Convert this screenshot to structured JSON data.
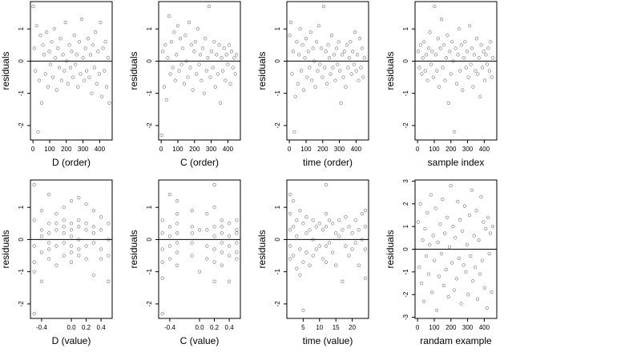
{
  "chart_data": [
    {
      "type": "scatter",
      "xlabel": "D (order)",
      "ylabel": "residuals",
      "xlim": [
        -15,
        475
      ],
      "ylim": [
        -2.45,
        1.85
      ],
      "xticks": [
        0,
        100,
        200,
        300,
        400
      ],
      "xtick_labels": [
        "0",
        "100",
        "200",
        "300",
        "400"
      ],
      "yticks": [
        -2,
        -1,
        0,
        1
      ],
      "ytick_labels": [
        "-2",
        "-1",
        "0",
        "1"
      ],
      "reference_line_y": 0,
      "grid": false,
      "x": [
        2,
        8,
        15,
        22,
        30,
        38,
        45,
        52,
        60,
        68,
        75,
        82,
        90,
        98,
        105,
        112,
        120,
        128,
        135,
        142,
        150,
        158,
        165,
        172,
        180,
        188,
        195,
        202,
        210,
        218,
        225,
        232,
        240,
        248,
        255,
        262,
        270,
        278,
        285,
        292,
        300,
        308,
        315,
        322,
        330,
        338,
        345,
        352,
        360,
        368,
        375,
        382,
        390,
        398,
        405,
        412,
        420,
        428,
        435,
        442,
        450,
        458
      ],
      "y": [
        1.7,
        0.4,
        -0.3,
        1.1,
        -2.2,
        -0.6,
        0.8,
        -1.3,
        0.5,
        0.2,
        -0.4,
        0.9,
        -0.8,
        0.3,
        -0.1,
        0.6,
        -0.5,
        1.0,
        0.1,
        -0.9,
        0.4,
        -0.2,
        0.7,
        -0.6,
        0.2,
        -0.3,
        1.2,
        0.0,
        -0.7,
        0.5,
        -0.2,
        0.3,
        -0.5,
        0.8,
        -0.1,
        0.2,
        -0.8,
        0.6,
        -0.4,
        1.3,
        0.1,
        -0.6,
        0.4,
        -0.3,
        0.7,
        -0.5,
        0.2,
        -1.0,
        0.5,
        -0.2,
        0.9,
        -0.7,
        0.3,
        -0.4,
        1.2,
        -1.1,
        0.4,
        -0.3,
        0.6,
        -0.8,
        0.1,
        -1.3
      ]
    },
    {
      "type": "scatter",
      "xlabel": "C (order)",
      "ylabel": "residuals",
      "xlim": [
        -15,
        475
      ],
      "ylim": [
        -2.45,
        1.85
      ],
      "xticks": [
        0,
        100,
        200,
        300,
        400
      ],
      "xtick_labels": [
        "0",
        "100",
        "200",
        "300",
        "400"
      ],
      "yticks": [
        -2,
        -1,
        0,
        1
      ],
      "ytick_labels": [
        "-2",
        "-1",
        "0",
        "1"
      ],
      "reference_line_y": 0,
      "grid": false,
      "x": [
        3,
        10,
        18,
        25,
        32,
        40,
        48,
        55,
        62,
        70,
        78,
        85,
        92,
        100,
        108,
        115,
        122,
        130,
        138,
        145,
        152,
        160,
        168,
        175,
        182,
        190,
        198,
        205,
        212,
        220,
        228,
        235,
        242,
        250,
        258,
        265,
        272,
        280,
        288,
        295,
        302,
        310,
        318,
        325,
        332,
        340,
        348,
        355,
        362,
        370,
        378,
        385,
        392,
        400,
        408,
        415,
        422,
        430,
        438,
        445,
        452
      ],
      "y": [
        -2.3,
        0.3,
        -0.8,
        0.5,
        -1.2,
        0.1,
        1.4,
        -0.4,
        0.6,
        -0.2,
        0.9,
        -0.6,
        0.2,
        1.1,
        -0.3,
        0.7,
        -0.1,
        0.4,
        -0.7,
        0.8,
        0.0,
        -0.5,
        1.2,
        -0.2,
        0.5,
        -0.9,
        0.3,
        0.6,
        -0.4,
        1.0,
        -0.1,
        0.2,
        -0.6,
        0.4,
        -1.0,
        0.7,
        -0.3,
        0.1,
        1.7,
        -0.5,
        0.3,
        -0.2,
        0.6,
        -0.8,
        0.2,
        -0.4,
        0.5,
        -1.3,
        0.1,
        -0.3,
        0.4,
        -0.6,
        0.2,
        -0.1,
        0.5,
        -0.7,
        0.3,
        -0.2,
        0.1,
        -0.4,
        0.2
      ]
    },
    {
      "type": "scatter",
      "xlabel": "time (order)",
      "ylabel": "residuals",
      "xlim": [
        -15,
        475
      ],
      "ylim": [
        -2.45,
        1.85
      ],
      "xticks": [
        0,
        100,
        200,
        300,
        400
      ],
      "xtick_labels": [
        "0",
        "100",
        "200",
        "300",
        "400"
      ],
      "yticks": [
        -2,
        -1,
        0,
        1
      ],
      "ytick_labels": [
        "-2",
        "-1",
        "0",
        "1"
      ],
      "reference_line_y": 0,
      "grid": false,
      "x": [
        2,
        9,
        16,
        23,
        30,
        37,
        44,
        51,
        58,
        65,
        72,
        79,
        86,
        93,
        100,
        107,
        114,
        121,
        128,
        135,
        142,
        149,
        156,
        163,
        170,
        177,
        184,
        191,
        198,
        205,
        212,
        219,
        226,
        233,
        240,
        247,
        254,
        261,
        268,
        275,
        282,
        289,
        296,
        303,
        310,
        317,
        324,
        331,
        338,
        345,
        352,
        359,
        366,
        373,
        380,
        387,
        394,
        401,
        408,
        415,
        422,
        429,
        436,
        443,
        450
      ],
      "y": [
        0.8,
        1.2,
        -0.4,
        0.3,
        -2.2,
        -1.1,
        0.6,
        -0.7,
        0.2,
        1.0,
        -0.3,
        0.5,
        -0.9,
        0.1,
        0.7,
        -0.5,
        0.3,
        -0.2,
        0.9,
        -0.6,
        0.4,
        0.0,
        -0.8,
        0.6,
        -0.3,
        1.1,
        -0.1,
        0.4,
        -0.5,
        1.7,
        -0.2,
        0.3,
        -0.7,
        0.5,
        0.1,
        -0.4,
        0.8,
        -0.2,
        0.2,
        -0.6,
        0.4,
        -0.1,
        0.6,
        -0.3,
        -1.3,
        0.2,
        -0.5,
        0.3,
        -0.8,
        0.5,
        -0.2,
        0.1,
        0.6,
        -0.4,
        0.3,
        -0.1,
        0.9,
        -0.3,
        0.2,
        -0.6,
        0.7,
        -0.2,
        0.4,
        -0.5,
        0.1
      ]
    },
    {
      "type": "scatter",
      "xlabel": "sample index",
      "ylabel": "residuals",
      "xlim": [
        -15,
        475
      ],
      "ylim": [
        -2.45,
        1.85
      ],
      "xticks": [
        0,
        100,
        200,
        300,
        400
      ],
      "xtick_labels": [
        "0",
        "100",
        "200",
        "300",
        "400"
      ],
      "yticks": [
        -2,
        -1,
        0,
        1
      ],
      "ytick_labels": [
        "-2",
        "-1",
        "0",
        "1"
      ],
      "reference_line_y": 0,
      "grid": false,
      "x": [
        4,
        11,
        18,
        25,
        32,
        39,
        46,
        53,
        60,
        67,
        74,
        81,
        88,
        95,
        102,
        109,
        116,
        123,
        130,
        137,
        144,
        151,
        158,
        165,
        172,
        179,
        186,
        193,
        200,
        207,
        214,
        221,
        228,
        235,
        242,
        249,
        256,
        263,
        270,
        277,
        284,
        291,
        298,
        305,
        312,
        319,
        326,
        333,
        340,
        347,
        354,
        361,
        368,
        375,
        382,
        389,
        396,
        403,
        410,
        417,
        424,
        431,
        438,
        445,
        452
      ],
      "y": [
        0.3,
        -0.2,
        0.5,
        -0.4,
        0.1,
        0.6,
        -0.3,
        0.2,
        -0.6,
        0.4,
        0.9,
        -0.1,
        0.3,
        -0.5,
        1.7,
        0.2,
        -0.3,
        0.7,
        -0.8,
        0.4,
        1.3,
        -0.2,
        0.5,
        -0.6,
        0.1,
        0.8,
        -1.3,
        0.3,
        -0.4,
        0.6,
        0.0,
        -2.2,
        0.4,
        -0.7,
        0.2,
        1.0,
        -0.3,
        0.5,
        -0.9,
        0.1,
        0.6,
        -0.2,
        0.3,
        -0.5,
        1.1,
        -0.1,
        0.4,
        -0.8,
        0.2,
        -0.3,
        0.7,
        -0.4,
        0.1,
        -1.1,
        0.5,
        -0.2,
        0.3,
        -0.6,
        0.2,
        -0.1,
        0.4,
        -0.3,
        0.6,
        -0.5,
        0.1
      ]
    },
    {
      "type": "scatter",
      "xlabel": "D (value)",
      "ylabel": "residuals",
      "xlim": [
        -0.55,
        0.55
      ],
      "ylim": [
        -2.45,
        1.85
      ],
      "xticks": [
        -0.4,
        0.0,
        0.2,
        0.4
      ],
      "xtick_labels": [
        "-0.4",
        "0.0",
        "0.2",
        "0.4"
      ],
      "yticks": [
        -2,
        -1,
        0,
        1
      ],
      "ytick_labels": [
        "-2",
        "-1",
        "0",
        "1"
      ],
      "reference_line_y": 0,
      "grid": false,
      "x": [
        -0.5,
        -0.5,
        -0.5,
        -0.5,
        -0.5,
        -0.5,
        -0.4,
        -0.4,
        -0.4,
        -0.4,
        -0.4,
        -0.3,
        -0.3,
        -0.3,
        -0.3,
        -0.3,
        -0.3,
        -0.2,
        -0.2,
        -0.2,
        -0.2,
        -0.2,
        -0.1,
        -0.1,
        -0.1,
        -0.1,
        -0.1,
        -0.1,
        0.0,
        0.0,
        0.0,
        0.0,
        0.0,
        0.0,
        0.0,
        0.1,
        0.1,
        0.1,
        0.1,
        0.1,
        0.1,
        0.2,
        0.2,
        0.2,
        0.2,
        0.2,
        0.3,
        0.3,
        0.3,
        0.3,
        0.3,
        0.4,
        0.4,
        0.4,
        0.4,
        0.5,
        0.5,
        0.5,
        0.5
      ],
      "y": [
        1.7,
        0.6,
        -0.2,
        -0.7,
        -1.0,
        -2.3,
        0.9,
        0.3,
        -0.4,
        0.1,
        -1.3,
        1.4,
        0.5,
        -0.1,
        0.2,
        -0.6,
        -0.3,
        0.8,
        0.3,
        -0.2,
        0.5,
        -0.8,
        1.0,
        0.4,
        -0.1,
        0.2,
        -0.5,
        0.6,
        1.2,
        0.3,
        -0.2,
        0.5,
        -0.4,
        0.1,
        -0.7,
        1.3,
        0.6,
        0.0,
        -0.3,
        0.4,
        -0.5,
        1.1,
        0.5,
        -0.2,
        0.3,
        -0.6,
        0.9,
        0.2,
        -0.1,
        -1.1,
        0.4,
        0.7,
        0.3,
        -0.3,
        -0.6,
        0.5,
        0.0,
        -0.5,
        -1.3
      ]
    },
    {
      "type": "scatter",
      "xlabel": "C (value)",
      "ylabel": "residuals",
      "xlim": [
        -0.55,
        0.55
      ],
      "ylim": [
        -2.45,
        1.85
      ],
      "xticks": [
        -0.4,
        0.0,
        0.2,
        0.4
      ],
      "xtick_labels": [
        "-0.4",
        "0.0",
        "0.2",
        "0.4"
      ],
      "yticks": [
        -2,
        -1,
        0,
        1
      ],
      "ytick_labels": [
        "-2",
        "-1",
        "0",
        "1"
      ],
      "reference_line_y": 0,
      "grid": false,
      "x": [
        -0.5,
        -0.5,
        -0.5,
        -0.5,
        -0.5,
        -0.5,
        -0.4,
        -0.4,
        -0.4,
        -0.4,
        -0.4,
        -0.3,
        -0.3,
        -0.3,
        -0.3,
        -0.3,
        -0.3,
        -0.3,
        -0.1,
        -0.1,
        -0.1,
        -0.1,
        -0.1,
        0.0,
        0.0,
        0.1,
        0.1,
        0.1,
        0.1,
        0.2,
        0.2,
        0.2,
        0.2,
        0.2,
        0.2,
        0.2,
        0.3,
        0.3,
        0.3,
        0.3,
        0.3,
        0.3,
        0.4,
        0.4,
        0.4,
        0.4,
        0.4,
        0.5,
        0.5,
        0.5,
        0.5,
        0.5,
        0.5
      ],
      "y": [
        0.6,
        0.2,
        -0.3,
        -0.7,
        -1.2,
        -2.3,
        1.4,
        0.4,
        -0.2,
        0.1,
        -0.6,
        1.2,
        0.8,
        0.5,
        0.2,
        -0.1,
        -0.4,
        -0.8,
        0.9,
        0.4,
        -0.1,
        0.2,
        -0.5,
        0.3,
        -1.0,
        0.8,
        0.3,
        -0.2,
        -0.6,
        1.7,
        1.0,
        0.4,
        0.1,
        -0.3,
        -0.7,
        -1.3,
        0.6,
        0.2,
        -0.1,
        0.4,
        -0.4,
        -0.8,
        0.5,
        0.1,
        -0.2,
        -0.5,
        -1.3,
        0.6,
        0.2,
        -0.1,
        0.3,
        -0.4,
        -0.6
      ]
    },
    {
      "type": "scatter",
      "xlabel": "time (value)",
      "ylabel": "residuals",
      "xlim": [
        0,
        25
      ],
      "ylim": [
        -2.45,
        1.85
      ],
      "xticks": [
        5,
        10,
        15,
        20
      ],
      "xtick_labels": [
        "5",
        "10",
        "15",
        "20"
      ],
      "yticks": [
        -2,
        -1,
        0,
        1
      ],
      "ytick_labels": [
        "-2",
        "-1",
        "0",
        "1"
      ],
      "reference_line_y": 0,
      "grid": false,
      "x": [
        1,
        1,
        1,
        1,
        1,
        2,
        2,
        2,
        3,
        3,
        3,
        4,
        4,
        4,
        5,
        5,
        5,
        6,
        6,
        6,
        7,
        7,
        8,
        8,
        8,
        9,
        9,
        10,
        10,
        11,
        11,
        12,
        12,
        12,
        12,
        12,
        13,
        13,
        14,
        14,
        15,
        15,
        16,
        16,
        17,
        17,
        18,
        18,
        19,
        19,
        20,
        20,
        21,
        21,
        22,
        22,
        23,
        23,
        24,
        24,
        24,
        24
      ],
      "y": [
        1.4,
        0.8,
        0.3,
        -0.2,
        -0.6,
        1.2,
        0.4,
        -0.5,
        0.6,
        -0.9,
        0.1,
        0.9,
        -0.3,
        -1.1,
        0.5,
        -2.2,
        -0.7,
        0.7,
        0.2,
        -0.4,
        0.3,
        -0.8,
        0.6,
        0.0,
        -0.5,
        0.4,
        -0.3,
        0.5,
        -0.2,
        0.3,
        -0.6,
        1.7,
        0.8,
        0.4,
        -0.2,
        -0.7,
        0.6,
        -0.1,
        0.5,
        -0.4,
        0.2,
        -0.8,
        0.6,
        0.1,
        0.3,
        -1.3,
        0.7,
        -0.2,
        0.4,
        -0.5,
        0.2,
        -0.3,
        0.6,
        -0.1,
        0.3,
        -0.8,
        0.8,
        0.0,
        0.9,
        0.4,
        -0.3,
        -1.2
      ]
    },
    {
      "type": "scatter",
      "xlabel": "randam example",
      "ylabel": "residuals",
      "xlim": [
        -15,
        475
      ],
      "ylim": [
        -3.05,
        3.05
      ],
      "xticks": [
        0,
        100,
        200,
        300,
        400
      ],
      "xtick_labels": [
        "0",
        "100",
        "200",
        "300",
        "400"
      ],
      "yticks": [
        -3,
        -2,
        -1,
        0,
        1,
        2,
        3
      ],
      "ytick_labels": [
        "-3",
        "-2",
        "-1",
        "0",
        "1",
        "2",
        "3"
      ],
      "reference_line_y": 0,
      "grid": false,
      "x": [
        3,
        10,
        17,
        24,
        31,
        38,
        45,
        52,
        59,
        66,
        73,
        80,
        87,
        94,
        101,
        108,
        115,
        122,
        129,
        136,
        143,
        150,
        157,
        164,
        171,
        178,
        185,
        192,
        199,
        206,
        213,
        220,
        227,
        234,
        241,
        248,
        255,
        262,
        269,
        276,
        283,
        290,
        297,
        304,
        311,
        318,
        325,
        332,
        339,
        346,
        353,
        360,
        367,
        374,
        381,
        388,
        395,
        402,
        409,
        416,
        423,
        430,
        437,
        444,
        451
      ],
      "y": [
        1.2,
        -0.8,
        2.0,
        -1.5,
        0.4,
        -2.3,
        0.9,
        -0.3,
        1.6,
        -1.1,
        0.2,
        2.4,
        -1.9,
        0.6,
        -0.5,
        1.8,
        -2.7,
        0.3,
        -1.2,
        1.1,
        -0.2,
        2.2,
        -1.6,
        0.7,
        -0.9,
        1.4,
        -2.1,
        0.1,
        2.8,
        -0.6,
        1.0,
        -1.8,
        0.5,
        -1.3,
        2.1,
        -0.4,
        1.3,
        -2.4,
        0.8,
        -0.7,
        1.9,
        -1.0,
        0.2,
        -2.0,
        1.5,
        -0.3,
        2.6,
        -1.4,
        0.6,
        -0.8,
        1.7,
        -2.2,
        0.4,
        -1.1,
        2.3,
        -0.5,
        1.2,
        -1.7,
        0.9,
        -2.6,
        1.4,
        -0.2,
        0.7,
        -1.9,
        1.0
      ]
    }
  ]
}
